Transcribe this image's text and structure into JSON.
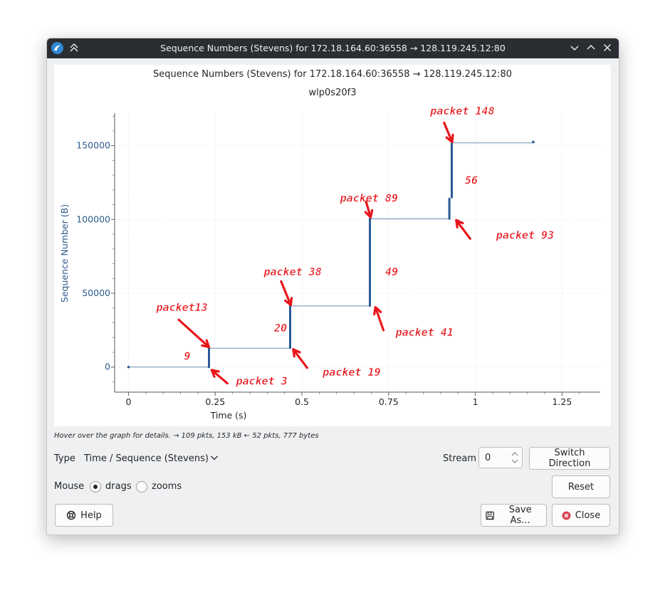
{
  "window": {
    "title": "Sequence Numbers (Stevens) for 172.18.164.60:36558 → 128.119.245.12:80"
  },
  "graph": {
    "title": "Sequence Numbers (Stevens) for 172.18.164.60:36558 → 128.119.245.12:80",
    "subtitle": "wlp0s20f3"
  },
  "chart_data": {
    "type": "scatter",
    "xlabel": "Time (s)",
    "ylabel": "Sequence Number (B)",
    "xlim": [
      -0.04,
      1.36
    ],
    "ylim": [
      -17000,
      172000
    ],
    "xticks": [
      "0",
      "0.25",
      "0.5",
      "0.75",
      "1",
      "1.25"
    ],
    "yticks": [
      "0",
      "50000",
      "100000",
      "150000"
    ],
    "grid": true,
    "point_color": "#2a5a96",
    "segments": [
      {
        "x": 0.0,
        "y0": 0,
        "y1": 0
      },
      {
        "x": 0.232,
        "y0": 0,
        "y1": 13000
      },
      {
        "x": 0.466,
        "y0": 13000,
        "y1": 41500
      },
      {
        "x": 0.696,
        "y0": 41500,
        "y1": 100500
      },
      {
        "x": 0.925,
        "y0": 100500,
        "y1": 114000
      },
      {
        "x": 0.932,
        "y0": 115000,
        "y1": 151500
      },
      {
        "x": 1.167,
        "y0": 152500,
        "y1": 152500
      }
    ],
    "window_lines": [
      {
        "x0": 0.0,
        "x1": 0.232,
        "y": 0
      },
      {
        "x0": 0.232,
        "x1": 0.466,
        "y": 12800
      },
      {
        "x0": 0.466,
        "x1": 0.696,
        "y": 41400
      },
      {
        "x0": 0.696,
        "x1": 0.925,
        "y": 100400
      },
      {
        "x0": 0.932,
        "x1": 1.167,
        "y": 151900
      }
    ],
    "annotations": [
      {
        "text": "packet13",
        "x": 0.08,
        "y": 38000
      },
      {
        "text": "9",
        "x": 0.16,
        "y": 5000
      },
      {
        "text": "packet 3",
        "x": 0.31,
        "y": -12000
      },
      {
        "text": "packet 38",
        "x": 0.39,
        "y": 62000
      },
      {
        "text": "20",
        "x": 0.42,
        "y": 24000
      },
      {
        "text": "packet 19",
        "x": 0.56,
        "y": -6000
      },
      {
        "text": "packet 89",
        "x": 0.61,
        "y": 112000
      },
      {
        "text": "49",
        "x": 0.74,
        "y": 62000
      },
      {
        "text": "packet 41",
        "x": 0.77,
        "y": 21000
      },
      {
        "text": "packet 148",
        "x": 0.87,
        "y": 171000
      },
      {
        "text": "56",
        "x": 0.97,
        "y": 124000
      },
      {
        "text": "packet 93",
        "x": 1.06,
        "y": 87000
      }
    ],
    "arrows": [
      {
        "from": [
          0.145,
          32000
        ],
        "to": [
          0.232,
          13500
        ]
      },
      {
        "from": [
          0.285,
          -11000
        ],
        "to": [
          0.24,
          -2000
        ]
      },
      {
        "from": [
          0.44,
          58000
        ],
        "to": [
          0.468,
          42000
        ]
      },
      {
        "from": [
          0.515,
          -500
        ],
        "to": [
          0.475,
          12000
        ]
      },
      {
        "from": [
          0.685,
          112000
        ],
        "to": [
          0.698,
          101500
        ]
      },
      {
        "from": [
          0.735,
          25000
        ],
        "to": [
          0.712,
          40500
        ]
      },
      {
        "from": [
          0.91,
          165500
        ],
        "to": [
          0.933,
          152500
        ]
      },
      {
        "from": [
          0.985,
          87000
        ],
        "to": [
          0.945,
          99500
        ]
      }
    ]
  },
  "status": {
    "hint": "Hover over the graph for details. → 109 pkts, 153 kB ← 52 pkts, 777 bytes"
  },
  "controls": {
    "type_label": "Type",
    "type_value": "Time / Sequence (Stevens)",
    "stream_label": "Stream",
    "stream_value": "0",
    "switch_direction": "Switch Direction",
    "mouse_label": "Mouse",
    "drags": "drags",
    "zooms": "zooms",
    "reset": "Reset",
    "help": "Help",
    "save_as": "Save As...",
    "close": "Close"
  },
  "colors": {
    "titlebar": "#2a2e32",
    "points": "#2a5a96",
    "axis_text": "#2e5a8c",
    "annotation": "#e8161c",
    "close_icon": "#da4453"
  }
}
